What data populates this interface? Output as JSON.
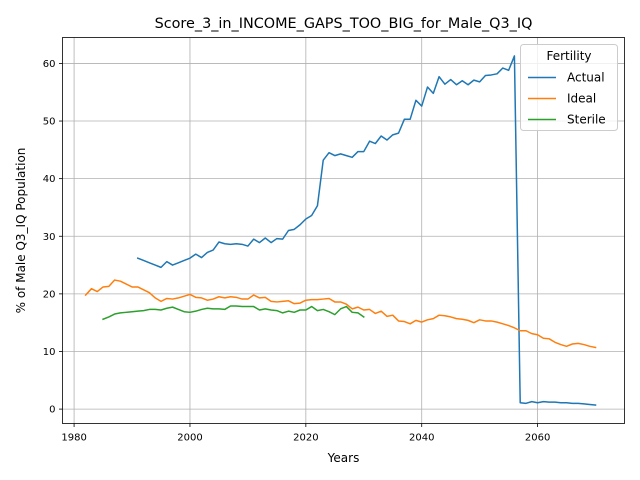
{
  "chart_data": {
    "type": "line",
    "title": "Score_3_in_INCOME_GAPS_TOO_BIG_for_Male_Q3_IQ",
    "xlabel": "Years",
    "ylabel": "% of Male Q3_IQ Population",
    "xlim": [
      1978,
      2075
    ],
    "ylim": [
      -2.5,
      64.5
    ],
    "xticks": [
      1980,
      2000,
      2020,
      2040,
      2060
    ],
    "yticks": [
      0,
      10,
      20,
      30,
      40,
      50,
      60
    ],
    "grid": true,
    "legend": {
      "title": "Fertility",
      "placement": "top-right"
    },
    "series": [
      {
        "name": "Actual",
        "color": "#1f77b4",
        "x": [
          1991,
          1992,
          1993,
          1994,
          1995,
          1996,
          1997,
          1998,
          1999,
          2000,
          2001,
          2002,
          2003,
          2004,
          2005,
          2006,
          2007,
          2008,
          2009,
          2010,
          2011,
          2012,
          2013,
          2014,
          2015,
          2016,
          2017,
          2018,
          2019,
          2020,
          2021,
          2022,
          2023,
          2024,
          2025,
          2026,
          2027,
          2028,
          2029,
          2030,
          2031,
          2032,
          2033,
          2034,
          2035,
          2036,
          2037,
          2038,
          2039,
          2040,
          2041,
          2042,
          2043,
          2044,
          2045,
          2046,
          2047,
          2048,
          2049,
          2050,
          2051,
          2052,
          2053,
          2054,
          2055,
          2056,
          2057,
          2058,
          2059,
          2060,
          2061,
          2062,
          2063,
          2064,
          2065,
          2066,
          2067,
          2068,
          2069,
          2070
        ],
        "values": [
          26.2,
          25.8,
          25.4,
          25.0,
          24.6,
          25.6,
          25.0,
          25.4,
          25.8,
          26.2,
          26.9,
          26.3,
          27.2,
          27.6,
          29.0,
          28.7,
          28.6,
          28.7,
          28.6,
          28.3,
          29.5,
          28.9,
          29.7,
          28.9,
          29.6,
          29.5,
          31.0,
          31.2,
          32.0,
          33.0,
          33.6,
          35.3,
          43.2,
          44.5,
          44.0,
          44.3,
          44.0,
          43.7,
          44.7,
          44.7,
          46.5,
          46.1,
          47.4,
          46.7,
          47.6,
          47.9,
          50.3,
          50.3,
          53.6,
          52.6,
          55.9,
          54.8,
          57.7,
          56.4,
          57.2,
          56.3,
          57.0,
          56.3,
          57.1,
          56.8,
          57.9,
          58.0,
          58.2,
          59.2,
          58.8,
          61.3,
          1.1,
          1.0,
          1.3,
          1.1,
          1.3,
          1.2,
          1.2,
          1.1,
          1.1,
          1.0,
          1.0,
          0.9,
          0.8,
          0.7
        ]
      },
      {
        "name": "Ideal",
        "color": "#ff7f0e",
        "x": [
          1982,
          1983,
          1984,
          1985,
          1986,
          1987,
          1988,
          1989,
          1990,
          1991,
          1992,
          1993,
          1994,
          1995,
          1996,
          1997,
          1998,
          1999,
          2000,
          2001,
          2002,
          2003,
          2004,
          2005,
          2006,
          2007,
          2008,
          2009,
          2010,
          2011,
          2012,
          2013,
          2014,
          2015,
          2016,
          2017,
          2018,
          2019,
          2020,
          2021,
          2022,
          2023,
          2024,
          2025,
          2026,
          2027,
          2028,
          2029,
          2030,
          2031,
          2032,
          2033,
          2034,
          2035,
          2036,
          2037,
          2038,
          2039,
          2040,
          2041,
          2042,
          2043,
          2044,
          2045,
          2046,
          2047,
          2048,
          2049,
          2050,
          2051,
          2052,
          2053,
          2054,
          2055,
          2056,
          2057,
          2058,
          2059,
          2060,
          2061,
          2062,
          2063,
          2064,
          2065,
          2066,
          2067,
          2068,
          2069,
          2070
        ],
        "values": [
          19.8,
          20.9,
          20.4,
          21.2,
          21.3,
          22.4,
          22.2,
          21.7,
          21.2,
          21.2,
          20.7,
          20.2,
          19.3,
          18.7,
          19.2,
          19.1,
          19.3,
          19.6,
          19.9,
          19.4,
          19.3,
          18.9,
          19.1,
          19.5,
          19.3,
          19.5,
          19.4,
          19.1,
          19.1,
          19.8,
          19.3,
          19.4,
          18.7,
          18.6,
          18.7,
          18.8,
          18.3,
          18.4,
          18.9,
          19.0,
          19.0,
          19.1,
          19.2,
          18.6,
          18.6,
          18.2,
          17.4,
          17.7,
          17.2,
          17.3,
          16.6,
          17.0,
          16.1,
          16.3,
          15.3,
          15.2,
          14.8,
          15.4,
          15.1,
          15.5,
          15.7,
          16.3,
          16.2,
          16.0,
          15.7,
          15.6,
          15.4,
          15.0,
          15.5,
          15.3,
          15.3,
          15.1,
          14.8,
          14.5,
          14.1,
          13.6,
          13.6,
          13.1,
          12.9,
          12.3,
          12.2,
          11.6,
          11.2,
          10.9,
          11.3,
          11.4,
          11.2,
          10.9,
          10.7
        ]
      },
      {
        "name": "Sterile",
        "color": "#2ca02c",
        "x": [
          1985,
          1986,
          1987,
          1988,
          1989,
          1990,
          1991,
          1992,
          1993,
          1994,
          1995,
          1996,
          1997,
          1998,
          1999,
          2000,
          2001,
          2002,
          2003,
          2004,
          2005,
          2006,
          2007,
          2008,
          2009,
          2010,
          2011,
          2012,
          2013,
          2014,
          2015,
          2016,
          2017,
          2018,
          2019,
          2020,
          2021,
          2022,
          2023,
          2024,
          2025,
          2026,
          2027,
          2028,
          2029,
          2030
        ],
        "values": [
          15.6,
          16.0,
          16.5,
          16.7,
          16.8,
          16.9,
          17.0,
          17.1,
          17.3,
          17.3,
          17.2,
          17.5,
          17.7,
          17.3,
          16.9,
          16.8,
          17.0,
          17.3,
          17.5,
          17.4,
          17.4,
          17.3,
          17.9,
          17.9,
          17.8,
          17.8,
          17.8,
          17.2,
          17.4,
          17.2,
          17.1,
          16.7,
          17.0,
          16.8,
          17.2,
          17.2,
          17.8,
          17.1,
          17.3,
          16.9,
          16.4,
          17.4,
          17.8,
          16.8,
          16.7,
          16.0
        ]
      }
    ]
  }
}
